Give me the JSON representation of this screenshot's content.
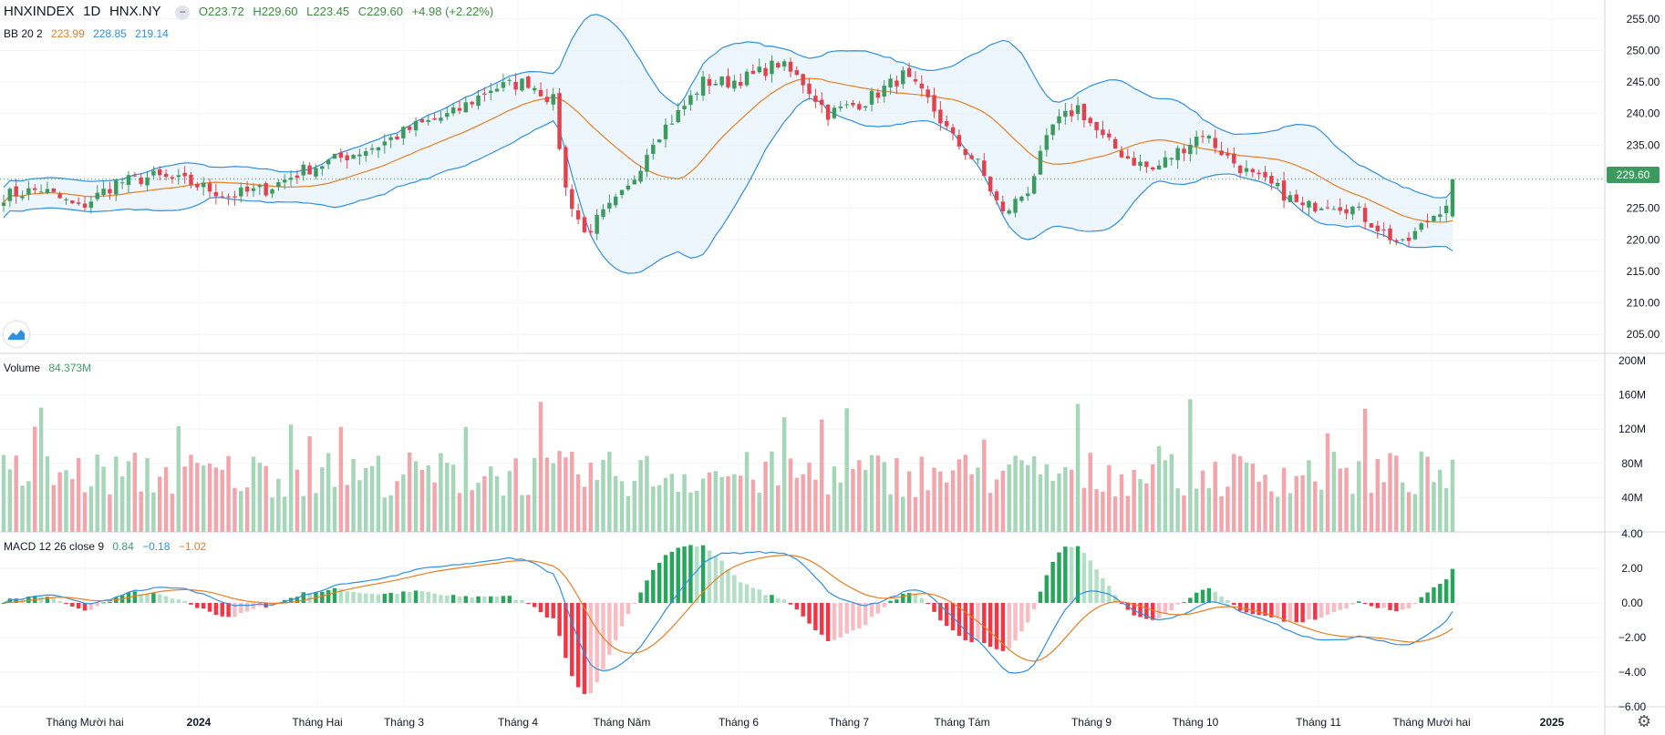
{
  "header": {
    "symbol": "HNXINDEX",
    "interval": "1D",
    "exchange": "HNX.NY",
    "open": "O223.72",
    "high": "H229.60",
    "low": "L223.45",
    "close": "C229.60",
    "change": "+4.98 (+2.22%)"
  },
  "bb_legend": {
    "label": "BB 20 2",
    "basis": "223.99",
    "upper": "228.85",
    "lower": "219.14"
  },
  "volume_legend": {
    "label": "Volume",
    "value": "84.373M"
  },
  "macd_legend": {
    "label": "MACD 12 26 close 9",
    "hist": "0.84",
    "macd": "−0.18",
    "signal": "−1.02"
  },
  "last_price_label": "229.60",
  "colors": {
    "up": "#26a69a",
    "candle_up": "#3d9a5e",
    "candle_down": "#e0434d",
    "bb_basis": "#e67e22",
    "bb_band": "#2f8fe0",
    "band_fill": "#e3f0fb"
  },
  "icons": {
    "logo": "tradingview-logo-icon",
    "settings": "gear-icon"
  },
  "chart_data": [
    {
      "type": "candlestick",
      "title": "HNXINDEX 1D HNX.NY",
      "ylim": [
        202,
        258
      ],
      "y_ticks": [
        "205.00",
        "210.00",
        "215.00",
        "220.00",
        "225.00",
        "230.00",
        "235.00",
        "240.00",
        "245.00",
        "250.00",
        "255.00"
      ],
      "x_ticks": [
        "Tháng Mười hai",
        "2024",
        "Tháng Hai",
        "Tháng 3",
        "Tháng 4",
        "Tháng Năm",
        "Tháng 6",
        "Tháng 7",
        "Tháng Tám",
        "Tháng 9",
        "Tháng 10",
        "Tháng 11",
        "Tháng Mười hai",
        "2025"
      ],
      "close_anchors": [
        [
          0,
          227
        ],
        [
          6,
          228
        ],
        [
          12,
          225
        ],
        [
          18,
          229
        ],
        [
          24,
          230
        ],
        [
          30,
          229
        ],
        [
          36,
          227
        ],
        [
          42,
          228
        ],
        [
          48,
          231
        ],
        [
          54,
          233
        ],
        [
          60,
          235
        ],
        [
          66,
          238
        ],
        [
          72,
          240
        ],
        [
          78,
          244
        ],
        [
          84,
          245
        ],
        [
          88,
          242
        ],
        [
          90,
          228
        ],
        [
          93,
          221
        ],
        [
          96,
          224
        ],
        [
          100,
          228
        ],
        [
          104,
          236
        ],
        [
          108,
          240
        ],
        [
          112,
          245
        ],
        [
          116,
          245
        ],
        [
          120,
          246
        ],
        [
          124,
          248
        ],
        [
          128,
          245
        ],
        [
          132,
          240
        ],
        [
          138,
          242
        ],
        [
          144,
          246
        ],
        [
          148,
          242
        ],
        [
          152,
          236
        ],
        [
          156,
          232
        ],
        [
          160,
          224
        ],
        [
          164,
          228
        ],
        [
          168,
          238
        ],
        [
          172,
          241
        ],
        [
          176,
          236
        ],
        [
          180,
          233
        ],
        [
          184,
          231
        ],
        [
          188,
          234
        ],
        [
          192,
          237
        ],
        [
          196,
          233
        ],
        [
          200,
          230
        ],
        [
          204,
          228
        ],
        [
          208,
          225
        ],
        [
          212,
          226
        ],
        [
          216,
          225
        ],
        [
          220,
          222
        ],
        [
          224,
          219
        ],
        [
          228,
          223
        ],
        [
          231,
          226
        ],
        [
          232,
          229.6
        ]
      ],
      "last": {
        "open": 223.72,
        "high": 229.6,
        "low": 223.45,
        "close": 229.6
      },
      "bollinger": {
        "period": 20,
        "stddev": 2,
        "basis_last": 223.99,
        "upper_last": 228.85,
        "lower_last": 219.14
      }
    },
    {
      "type": "bar",
      "title": "Volume",
      "ylim": [
        0,
        200
      ],
      "unit": "M",
      "y_ticks": [
        "40M",
        "80M",
        "120M",
        "160M",
        "200M"
      ],
      "last_value": 84.373
    },
    {
      "type": "line",
      "title": "MACD 12 26 close 9",
      "ylim": [
        -6,
        4
      ],
      "y_ticks": [
        "−6.00",
        "−4.00",
        "−2.00",
        "0.00",
        "2.00",
        "4.00"
      ],
      "last": {
        "histogram": 0.84,
        "macd": -0.18,
        "signal": -1.02
      }
    }
  ]
}
